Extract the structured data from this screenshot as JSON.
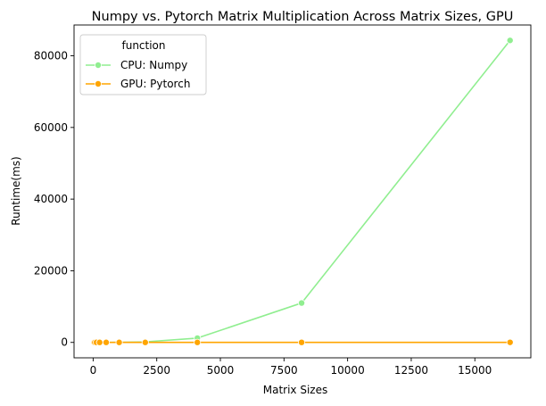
{
  "chart_data": {
    "type": "line",
    "title": "Numpy vs. Pytorch Matrix Multiplication Across Matrix Sizes, GPU",
    "xlabel": "Matrix Sizes",
    "ylabel": "Runtime(ms)",
    "xlim": [
      -750,
      17200
    ],
    "ylim": [
      -4300,
      88600
    ],
    "xticks": [
      0,
      2500,
      5000,
      7500,
      10000,
      12500,
      15000
    ],
    "xtick_labels": [
      "0",
      "2500",
      "5000",
      "7500",
      "10000",
      "12500",
      "15000"
    ],
    "yticks": [
      0,
      20000,
      40000,
      60000,
      80000
    ],
    "ytick_labels": [
      "0",
      "20000",
      "40000",
      "60000",
      "80000"
    ],
    "grid": false,
    "legend": {
      "title": "function",
      "placement": "top-left"
    },
    "x": [
      2,
      4,
      8,
      16,
      32,
      64,
      128,
      256,
      512,
      1024,
      2048,
      4096,
      8192,
      16384
    ],
    "series": [
      {
        "name": "CPU: Numpy",
        "color": "#90ee90",
        "values": [
          0,
          0,
          0,
          0,
          0,
          0,
          0,
          2,
          5,
          25,
          150,
          1200,
          11000,
          84300
        ]
      },
      {
        "name": "GPU: Pytorch",
        "color": "#ffa500",
        "values": [
          0,
          0,
          0,
          0,
          0,
          0,
          0,
          0,
          0,
          1,
          2,
          5,
          10,
          20
        ]
      }
    ]
  }
}
